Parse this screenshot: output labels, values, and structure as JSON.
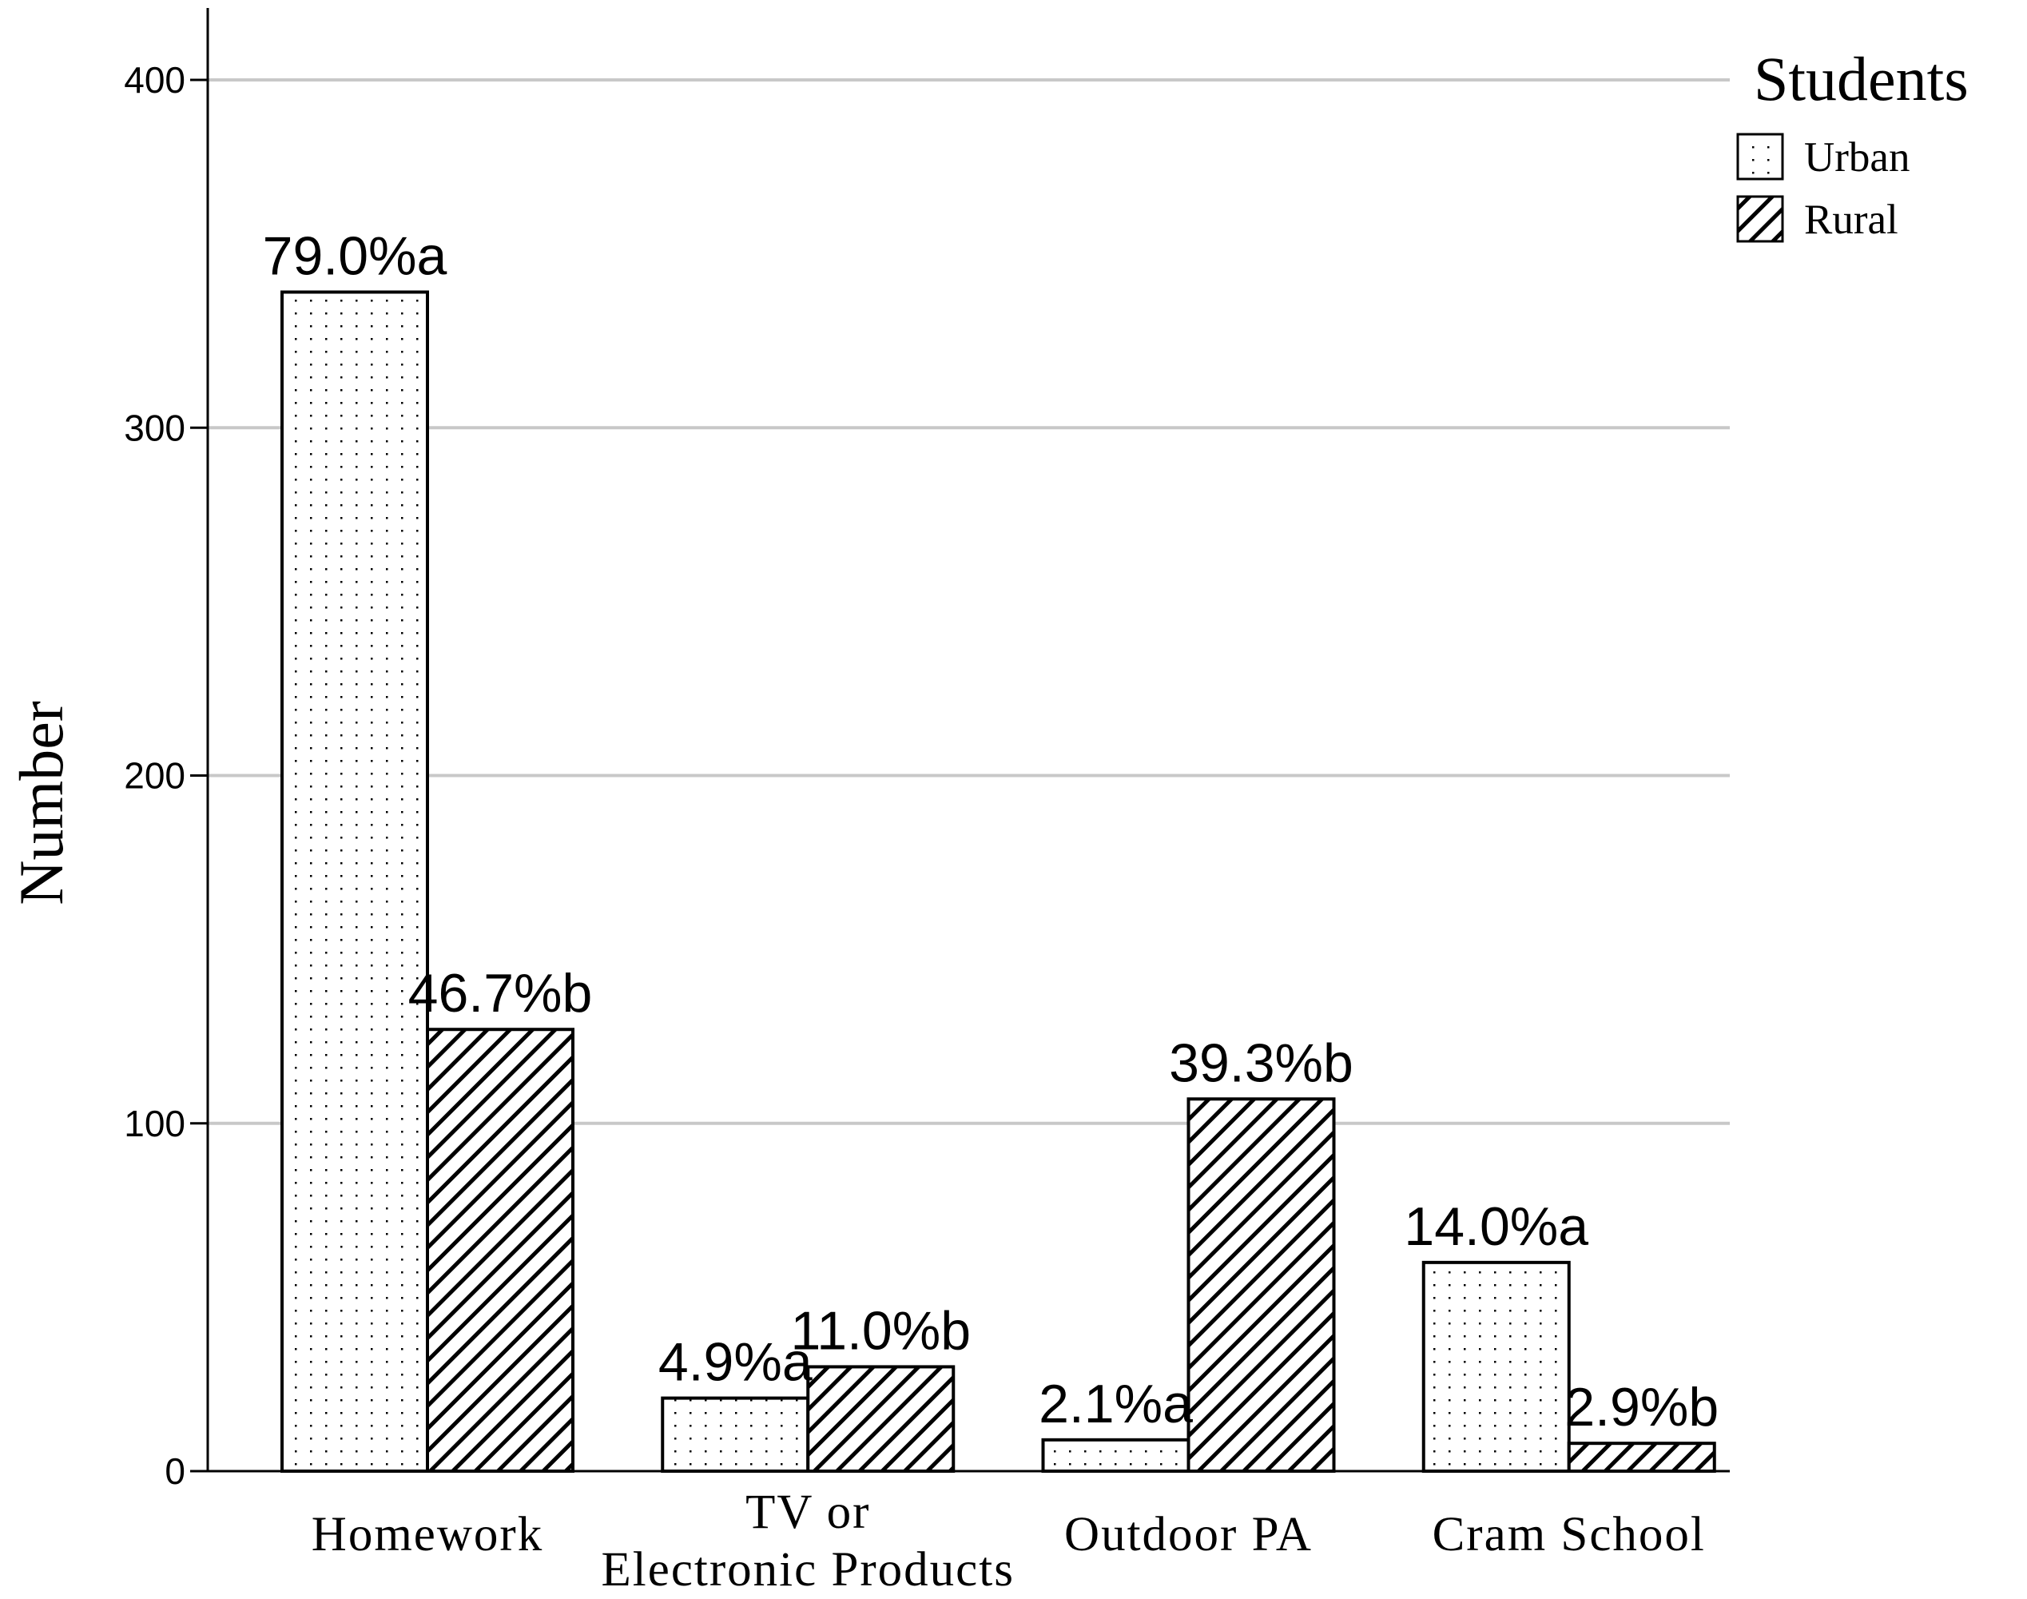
{
  "chart_data": {
    "type": "bar",
    "categories": [
      [
        "Homework"
      ],
      [
        "TV or",
        "Electronic Products"
      ],
      [
        "Outdoor PA"
      ],
      [
        "Cram School"
      ]
    ],
    "series": [
      {
        "name": "Urban",
        "pattern": "dots",
        "values": [
          339,
          21,
          9,
          60
        ],
        "labels": [
          "79.0%a",
          "4.9%a",
          "2.1%a",
          "14.0%a"
        ]
      },
      {
        "name": "Rural",
        "pattern": "hatch",
        "values": [
          127,
          30,
          107,
          8
        ],
        "labels": [
          "46.7%b",
          "11.0%b",
          "39.3%b",
          "2.9%b"
        ]
      }
    ],
    "ylabel": "Number",
    "xlabel": "",
    "ylim": [
      0,
      400
    ],
    "yticks": [
      0,
      100,
      200,
      300,
      400
    ],
    "grid": true,
    "legend": {
      "title": "Students",
      "placement": "top-right"
    },
    "colors": {
      "bar_fill": "#ffffff",
      "bar_stroke": "#000000",
      "grid": "#c8c8c8",
      "axis": "#000000"
    }
  }
}
